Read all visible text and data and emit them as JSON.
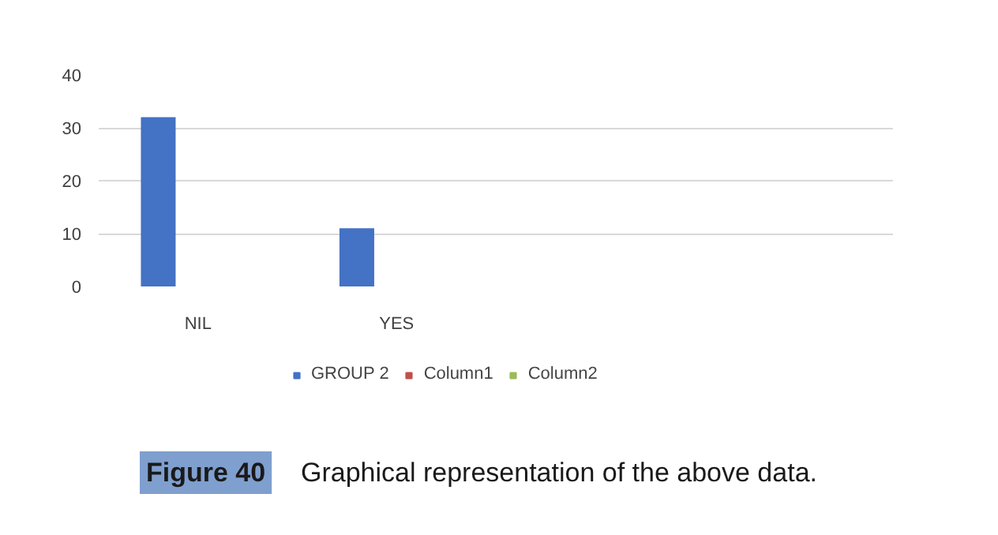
{
  "chart_data": {
    "type": "bar",
    "categories": [
      "NIL",
      "YES",
      null,
      null
    ],
    "series": [
      {
        "name": "GROUP 2",
        "color": "#4472c4",
        "values": [
          32,
          11,
          null,
          null
        ]
      },
      {
        "name": "Column1",
        "color": "#c0504d",
        "values": [
          null,
          null,
          null,
          null
        ]
      },
      {
        "name": "Column2",
        "color": "#9bbb59",
        "values": [
          null,
          null,
          null,
          null
        ]
      }
    ],
    "ylim": [
      0,
      40
    ],
    "yticks": [
      0,
      10,
      20,
      30,
      40
    ],
    "grid": "y",
    "legend": "bottom",
    "annotations": [
      "Figure 40",
      "Graphical representation of the above data."
    ]
  }
}
